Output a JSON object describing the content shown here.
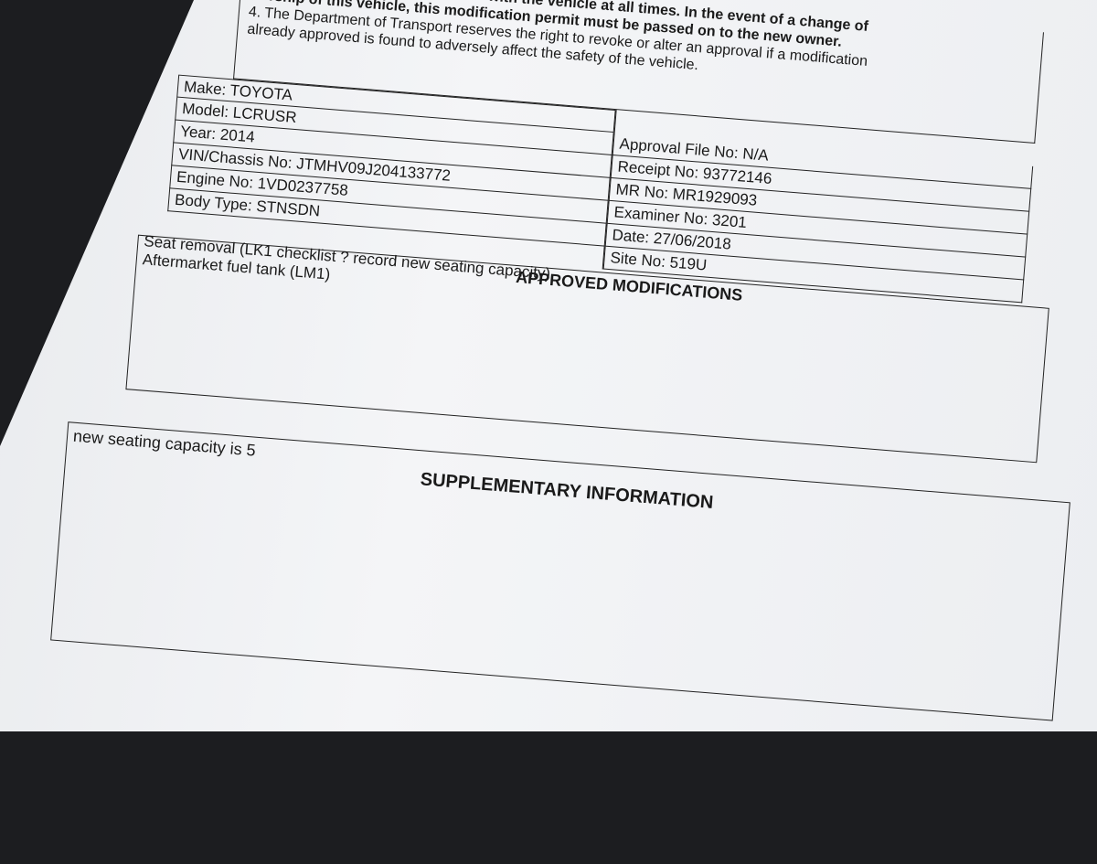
{
  "notes": {
    "line1": "with the vehicle at all times. In the event of a change of",
    "line2": "ownership of this vehicle, this modification permit must be passed on to the new owner.",
    "line3": "4. The Department of Transport reserves the right to revoke or alter an approval if a modification",
    "line4": "already approved is found to adversely affect the safety of the vehicle."
  },
  "vehicle": {
    "make": "Make: TOYOTA",
    "model": "Model: LCRUSR",
    "year": "Year: 2014",
    "vin": "VIN/Chassis No: JTMHV09J204133772",
    "engine": "Engine No: 1VD0237758",
    "body_type": "Body Type: STNSDN"
  },
  "approval": {
    "approval_file": "Approval File No: N/A",
    "receipt": "Receipt No:  93772146",
    "mr": "MR No: MR1929093",
    "examiner": "Examiner No: 3201",
    "date": "Date: 27/06/2018",
    "site": "Site No: 519U"
  },
  "approved_modifications": {
    "heading": "APPROVED MODIFICATIONS",
    "items": [
      "Seat removal (LK1 checklist ? record new seating capacity)",
      "Aftermarket fuel tank (LM1)"
    ]
  },
  "supplementary": {
    "heading": "SUPPLEMENTARY INFORMATION",
    "text": "new seating capacity is 5"
  }
}
